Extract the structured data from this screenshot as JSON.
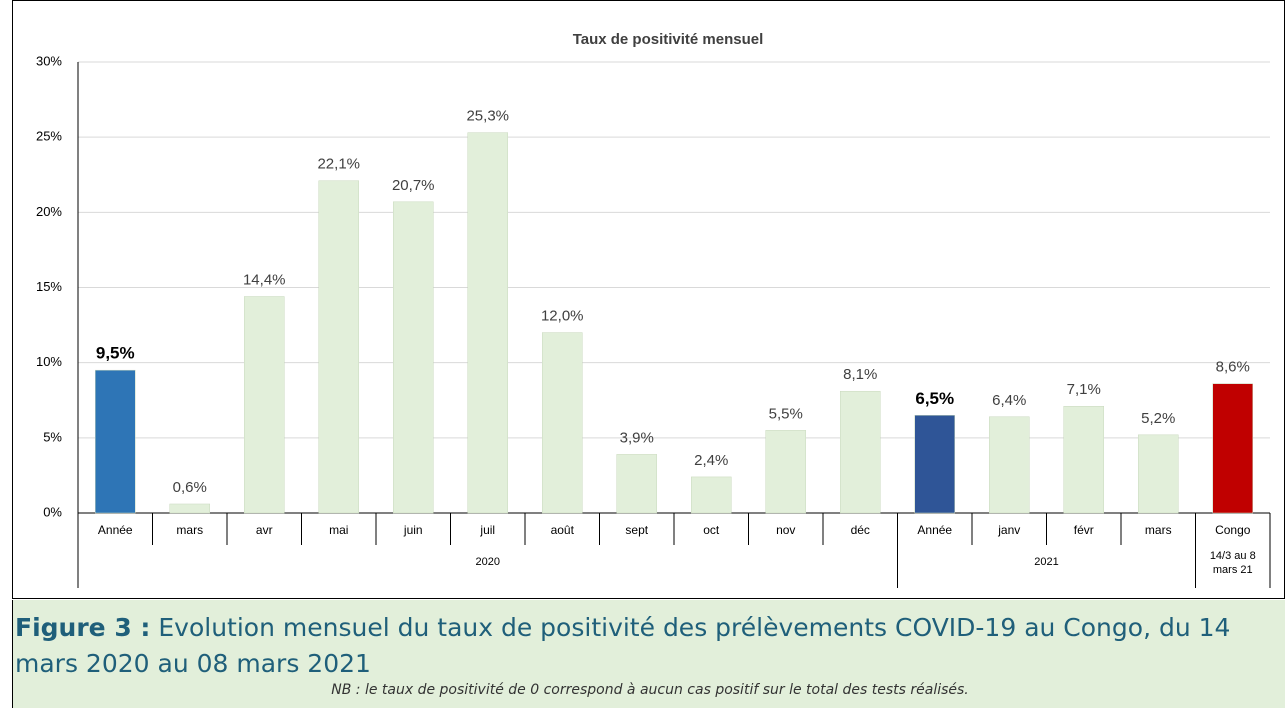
{
  "chart_data": {
    "type": "bar",
    "title": "Taux de positivité mensuel",
    "categories": [
      "Année",
      "mars",
      "avr",
      "mai",
      "juin",
      "juil",
      "août",
      "sept",
      "oct",
      "nov",
      "déc",
      "Année",
      "janv",
      "févr",
      "mars",
      "Congo"
    ],
    "groups": [
      "2020",
      null,
      null,
      null,
      null,
      null,
      null,
      null,
      null,
      null,
      null,
      "2021",
      null,
      null,
      null,
      "14/3 au 8 mars 21"
    ],
    "values": [
      9.5,
      0.6,
      14.4,
      22.1,
      20.7,
      25.3,
      12.0,
      3.9,
      2.4,
      5.5,
      8.1,
      6.5,
      6.4,
      7.1,
      5.2,
      8.6
    ],
    "value_labels": [
      "9,5%",
      "0,6%",
      "14,4%",
      "22,1%",
      "20,7%",
      "25,3%",
      "12,0%",
      "3,9%",
      "2,4%",
      "5,5%",
      "8,1%",
      "6,5%",
      "6,4%",
      "7,1%",
      "5,2%",
      "8,6%"
    ],
    "colors": [
      "#2e75b6",
      "#e2efda",
      "#e2efda",
      "#e2efda",
      "#e2efda",
      "#e2efda",
      "#e2efda",
      "#e2efda",
      "#e2efda",
      "#e2efda",
      "#e2efda",
      "#2f5597",
      "#e2efda",
      "#e2efda",
      "#e2efda",
      "#c00000"
    ],
    "bold_labels": [
      true,
      false,
      false,
      false,
      false,
      false,
      false,
      false,
      false,
      false,
      false,
      true,
      false,
      false,
      false,
      false
    ],
    "ylim": [
      0,
      30
    ],
    "yticks": [
      {
        "value": 0,
        "label": "0%"
      },
      {
        "value": 5,
        "label": "5%"
      },
      {
        "value": 10,
        "label": "10%"
      },
      {
        "value": 15,
        "label": "15%"
      },
      {
        "value": 20,
        "label": "20%"
      },
      {
        "value": 25,
        "label": "25%"
      },
      {
        "value": 30,
        "label": "30%"
      }
    ],
    "grid": true
  },
  "caption": {
    "label": "Figure 3 :",
    "text": " Evolution mensuel du taux de positivité des prélèvements COVID-19 au Congo, du 14 mars 2020 au 08 mars 2021",
    "note": "NB : le taux de positivité de 0 correspond à aucun cas positif sur le total des tests réalisés."
  }
}
